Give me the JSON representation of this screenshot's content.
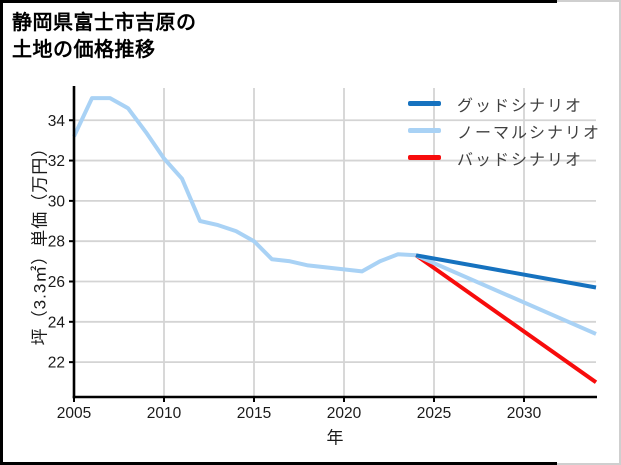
{
  "title": {
    "line1": "静岡県富士市吉原の",
    "line2": "土地の価格推移"
  },
  "chart_data": {
    "type": "line",
    "title": "静岡県富士市吉原の土地の価格推移",
    "xlabel": "年",
    "ylabel": "坪（3.3㎡）単価（万円）",
    "xlim": [
      2005,
      2034
    ],
    "ylim": [
      20.27,
      35.6
    ],
    "xticks": [
      2005,
      2010,
      2015,
      2020,
      2025,
      2030
    ],
    "yticks": [
      22,
      24,
      26,
      28,
      30,
      32,
      34
    ],
    "grid": true,
    "legend_position": "upper right",
    "colors": {
      "good": "#1672bf",
      "normal": "#a9d2f5",
      "bad": "#f70c0c",
      "gridline": "#d4d4d4",
      "spine": "#000000",
      "tick_text": "#1a1a1a"
    },
    "series": [
      {
        "name": "",
        "in_legend": false,
        "color": "#a9d2f5",
        "x": [
          2005,
          2006,
          2007,
          2008,
          2009,
          2010,
          2011,
          2012,
          2013,
          2014,
          2015,
          2016,
          2017,
          2018,
          2019,
          2020,
          2021,
          2022,
          2023,
          2024
        ],
        "values": [
          33.2,
          35.1,
          35.1,
          34.6,
          33.4,
          32.1,
          31.1,
          29.0,
          28.8,
          28.5,
          28.0,
          27.1,
          27.0,
          26.8,
          26.7,
          26.6,
          26.5,
          27.0,
          27.35,
          27.3
        ]
      },
      {
        "name": "バッドシナリオ",
        "in_legend": true,
        "color": "#f70c0c",
        "x": [
          2024,
          2034
        ],
        "values": [
          27.3,
          21.0
        ]
      },
      {
        "name": "ノーマルシナリオ",
        "in_legend": true,
        "color": "#a9d2f5",
        "x": [
          2024,
          2034
        ],
        "values": [
          27.3,
          23.4
        ]
      },
      {
        "name": "グッドシナリオ",
        "in_legend": true,
        "color": "#1672bf",
        "x": [
          2024,
          2034
        ],
        "values": [
          27.3,
          25.7
        ]
      }
    ],
    "legend": [
      {
        "label": "グッドシナリオ",
        "color": "#1672bf"
      },
      {
        "label": "ノーマルシナリオ",
        "color": "#a9d2f5"
      },
      {
        "label": "バッドシナリオ",
        "color": "#f70c0c"
      }
    ]
  }
}
